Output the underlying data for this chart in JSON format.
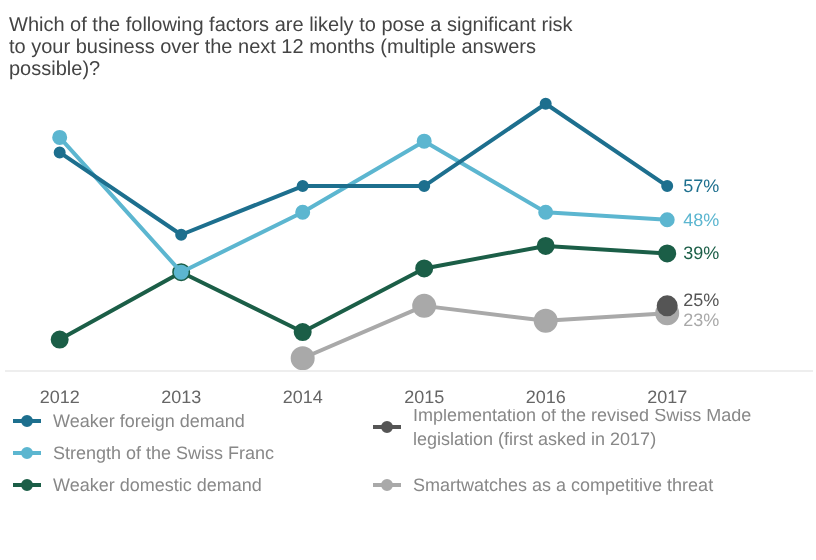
{
  "chart_data": {
    "type": "line",
    "title": "Which of the following factors are likely to pose a significant risk\nto your business over the next 12 months (multiple answers\npossible)?",
    "x": [
      2012,
      2013,
      2014,
      2015,
      2016,
      2017
    ],
    "xlim": [
      2011.55,
      2018.2
    ],
    "xticks": [
      2012,
      2013,
      2014,
      2015,
      2016,
      2017
    ],
    "series": [
      {
        "name": "Weaker foreign demand",
        "color": "#1d6f8e",
        "values": [
          66,
          44,
          57,
          57,
          79,
          57
        ],
        "value_labels": [
          null,
          null,
          null,
          null,
          null,
          "57%"
        ]
      },
      {
        "name": "Strength of the Swiss Franc",
        "color": "#5cb6d0",
        "values": [
          70,
          34,
          50,
          69,
          50,
          48
        ],
        "value_labels": [
          null,
          null,
          null,
          null,
          null,
          "48%"
        ]
      },
      {
        "name": "Weaker domestic demand",
        "color": "#1b5e47",
        "values": [
          16,
          34,
          18,
          35,
          41,
          39
        ],
        "value_labels": [
          null,
          null,
          null,
          null,
          null,
          "39%"
        ]
      },
      {
        "name": "Implementation of the revised Swiss Made\nlegislation (first asked in 2017)",
        "color": "#555555",
        "values": [
          null,
          null,
          null,
          null,
          null,
          25
        ],
        "value_labels": [
          null,
          null,
          null,
          null,
          null,
          "25%"
        ]
      },
      {
        "name": "Smartwatches as a competitive threat",
        "color": "#a9a9a9",
        "values": [
          null,
          null,
          11,
          25,
          21,
          23
        ],
        "value_labels": [
          null,
          null,
          null,
          null,
          null,
          "23%"
        ]
      }
    ],
    "marker": "circle",
    "line_style": "solid",
    "grid": false,
    "legend": "bottom"
  }
}
